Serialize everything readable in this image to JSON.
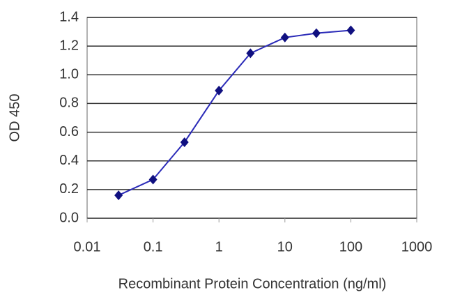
{
  "chart_data": {
    "type": "line",
    "x_label": "Recombinant Protein Concentration (ng/ml)",
    "y_label": "OD 450",
    "x": [
      0.03,
      0.1,
      0.3,
      1,
      3,
      10,
      30,
      100
    ],
    "series": [
      {
        "name": "OD 450",
        "color": "#2b2bb8",
        "marker_color": "#101080",
        "values": [
          0.16,
          0.27,
          0.53,
          0.89,
          1.15,
          1.26,
          1.29,
          1.31
        ]
      }
    ],
    "xlim": [
      0.01,
      1000
    ],
    "xticks": [
      0.01,
      0.1,
      1,
      10,
      100,
      1000
    ],
    "x_log": true,
    "ylim": [
      0,
      1.4
    ],
    "yticks": [
      {
        "value": 0,
        "label": "0.0"
      },
      0.2,
      0.4,
      0.6,
      0.8,
      {
        "value": 1,
        "label": "1.0"
      },
      1.2,
      1.4
    ],
    "grid": true
  }
}
